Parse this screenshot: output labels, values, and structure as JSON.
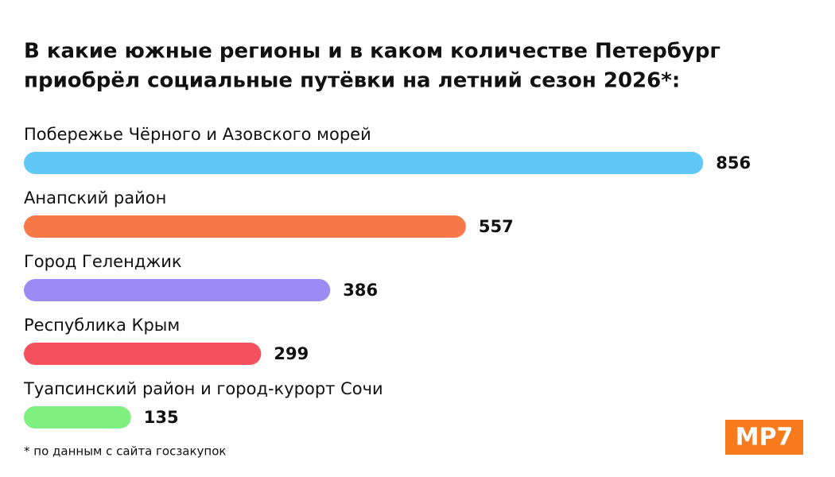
{
  "chart_data": {
    "type": "hbar",
    "title": [
      "В какие южные регионы и в каком количестве Петербург",
      "приобрёл социальные путёвки на летний сезон 2026*:"
    ],
    "categories": [
      "Побережье Чёрного и Азовского морей",
      "Анапский район",
      "Город Геленджик",
      "Республика Крым",
      "Туапсинский район и город-курорт Сочи"
    ],
    "values": [
      856,
      557,
      386,
      299,
      135
    ],
    "colors": [
      "#5fc8f7",
      "#f7794a",
      "#9d8bf5",
      "#f5505e",
      "#7ef07f"
    ]
  },
  "footnote": "* по данным с сайта госзакупок",
  "logo": "MP7"
}
